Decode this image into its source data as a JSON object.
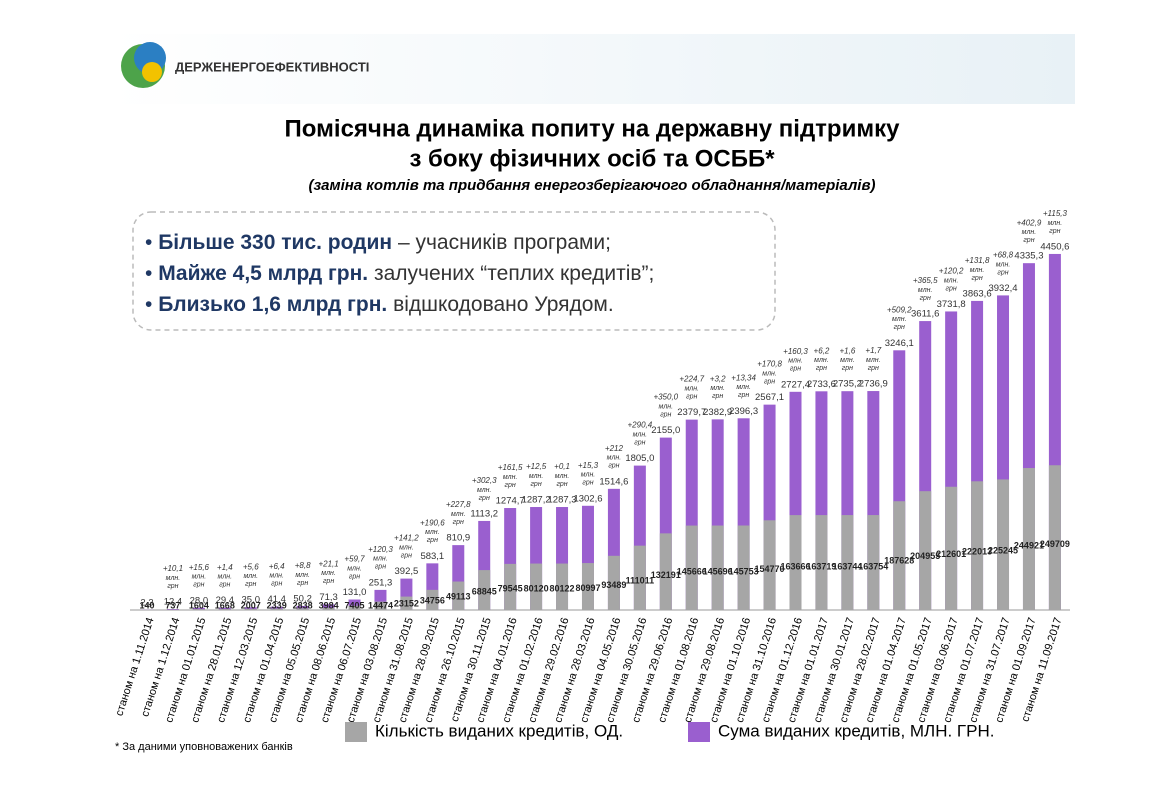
{
  "header": {
    "logo_text": "ДЕРЖЕНЕРГОЕФЕКТИВНОСТІ"
  },
  "title_lines": [
    "Помісячна динаміка попиту на державну підтримку",
    "з боку фізичних осіб та ОСББ*"
  ],
  "subtitle": "(заміна котлів  та  придбання енергозберігаючого обладнання/матеріалів)",
  "highlights": [
    {
      "bold": "Більше 330 тис. родин",
      "rest": " – учасників програми;"
    },
    {
      "bold": "Майже 4,5 млрд грн.",
      "rest": " залучених “теплих кредитів”;"
    },
    {
      "bold": "Близько 1,6 млрд грн.",
      "rest": " відшкодовано Урядом."
    }
  ],
  "footnote": "* За даними уповноважених банків",
  "chart_data": {
    "type": "bar",
    "categories": [
      "станом на 1.11.2014",
      "станом на 1.12.2014",
      "станом на 01.01.2015",
      "станом на 28.01.2015",
      "станом на 12.03.2015",
      "станом на 01.04.2015",
      "станом на 05.05.2015",
      "станом на 08.06.2015",
      "станом на 06.07.2015",
      "станом на 03.08.2015",
      "станом на 31.08.2015",
      "станом на 28.09.2015",
      "станом на 26.10.2015",
      "станом на 30.11.2015",
      "станом на 04.01.2016",
      "станом на 01.02.2016",
      "станом на 29.02.2016",
      "станом на 28.03.2016",
      "станом на 04.05.2016",
      "станом на 30.05.2016",
      "станом на 29.06.2016",
      "станом на 01.08.2016",
      "станом на 29.08.2016",
      "станом на 01.10.2016",
      "станом на 31.10.2016",
      "станом на 01.12.2016",
      "станом на 01.01.2017",
      "станом на 30.01.2017",
      "станом на 28.02.2017",
      "станом на 01.04.2017",
      "станом на 01.05.2017",
      "станом на 03.06.2017",
      "станом на 01.07.2017",
      "станом на 31.07.2017",
      "станом на 01.09.2017",
      "станом на 11.09.2017"
    ],
    "series": [
      {
        "name": "Сума виданих кредитів, МЛН. ГРН.",
        "color": "#9a5fcf",
        "axis": "y",
        "values": [
          2.3,
          12.4,
          28.0,
          29.4,
          35.0,
          41.4,
          50.2,
          71.3,
          131.0,
          251.3,
          392.5,
          583.1,
          810.9,
          1113.2,
          1274.7,
          1287.2,
          1287.3,
          1302.6,
          1514.6,
          1805.0,
          2155.0,
          2379.7,
          2382.9,
          2396.3,
          2567.1,
          2727.4,
          2733.6,
          2735.2,
          2736.9,
          3246.1,
          3611.6,
          3731.8,
          3863.6,
          3932.4,
          4335.3,
          4450.6
        ],
        "value_labels": [
          "2,3",
          "12,4",
          "28,0",
          "29,4",
          "35,0",
          "41,4",
          "50,2",
          "71,3",
          "131,0",
          "251,3",
          "392,5",
          "583,1",
          "810,9",
          "1113,2",
          "1274,7",
          "1287,2",
          "1287,3",
          "1302,6",
          "1514,6",
          "1805,0",
          "2155,0",
          "2379,7",
          "2382,9",
          "2396,3",
          "2567,1",
          "2727,4",
          "2733,6",
          "2735,2",
          "2736,9",
          "3246,1",
          "3611,6",
          "3731,8",
          "3863,6",
          "3932,4",
          "4335,3",
          "4450,6"
        ]
      },
      {
        "name": "Кількість виданих кредитів, ОД.",
        "color": "#a6a6a6",
        "axis": "y2",
        "values": [
          140,
          737,
          1604,
          1668,
          2007,
          2339,
          2838,
          3984,
          7405,
          14474,
          23152,
          34756,
          49113,
          68845,
          79545,
          80120,
          80122,
          80997,
          93489,
          111011,
          132191,
          145666,
          145696,
          145753,
          154770,
          163666,
          163719,
          163744,
          163754,
          187628,
          204955,
          212601,
          222013,
          225245,
          244921,
          249709
        ]
      }
    ],
    "increments": [
      null,
      "+10,1",
      "+15,6",
      "+1,4",
      "+5,6",
      "+6,4",
      "+8,8",
      "+21,1",
      "+59,7",
      "+120,3",
      "+141,2",
      "+190,6",
      "+227,8",
      "+302,3",
      "+161,5",
      "+12,5",
      "+0,1",
      "+15,3",
      "+212",
      "+290,4",
      "+350,0",
      "+224,7",
      "+3,2",
      "+13,34",
      "+170,8",
      "+160,3",
      "+6,2",
      "+1,6",
      "+1,7",
      "+509,2",
      "+365,5",
      "+120,2",
      "+131,8",
      "+68,8",
      "+402,9",
      "+115,3"
    ],
    "increment_unit": [
      "млн.",
      "грн"
    ],
    "ylim": [
      0,
      5000
    ],
    "y2lim": [
      0,
      690000
    ],
    "legend": "bottom"
  }
}
